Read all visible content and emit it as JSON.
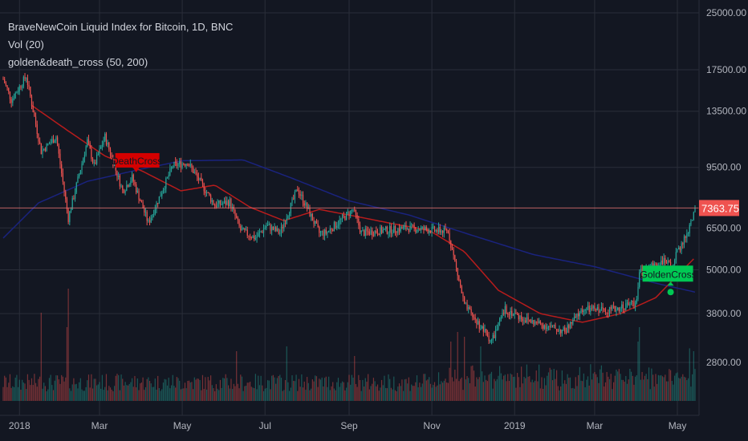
{
  "legend": {
    "title": "BraveNewCoin Liquid Index for Bitcoin, 1D, BNC",
    "volume": "Vol (20)",
    "indicator": "golden&death_cross (50, 200)"
  },
  "price_label": "7363.75",
  "annotations": {
    "death": "DeathCross",
    "golden": "GoldenCross"
  },
  "colors": {
    "background": "#131722",
    "grid": "#2a2e39",
    "up": "#26a69a",
    "down": "#ef5350",
    "ma50": "#b71c1c",
    "ma200": "#1a237e",
    "price_line": "#e57373",
    "death_marker": "#d50000",
    "golden_marker": "#00c853"
  },
  "chart_data": {
    "type": "candlestick",
    "scale": "log",
    "yticks": [
      25000,
      17500,
      13500,
      9500,
      6500,
      5000,
      3800,
      2800
    ],
    "ytick_labels": [
      "25000.00",
      "17500.00",
      "13500.00",
      "9500.00",
      "6500.00",
      "5000.00",
      "3800.00",
      "2800.00"
    ],
    "xticks": [
      "2018",
      "Mar",
      "May",
      "Jul",
      "Sep",
      "Nov",
      "2019",
      "Mar",
      "May"
    ],
    "xtick_dates": [
      "2018-01-01",
      "2018-03-01",
      "2018-05-01",
      "2018-07-01",
      "2018-09-01",
      "2018-11-01",
      "2019-01-01",
      "2019-03-01",
      "2019-05-01"
    ],
    "start_date": "2017-12-20",
    "end_date": "2019-05-14",
    "last_price": 7363.75,
    "close_anchors": [
      [
        "2017-12-20",
        16500
      ],
      [
        "2017-12-26",
        14500
      ],
      [
        "2018-01-06",
        16800
      ],
      [
        "2018-01-17",
        10500
      ],
      [
        "2018-01-28",
        11500
      ],
      [
        "2018-02-06",
        6900
      ],
      [
        "2018-02-20",
        11200
      ],
      [
        "2018-02-25",
        9600
      ],
      [
        "2018-03-05",
        11500
      ],
      [
        "2018-03-18",
        8200
      ],
      [
        "2018-03-25",
        8900
      ],
      [
        "2018-04-06",
        6700
      ],
      [
        "2018-04-24",
        9600
      ],
      [
        "2018-05-05",
        9800
      ],
      [
        "2018-05-25",
        7500
      ],
      [
        "2018-06-05",
        7650
      ],
      [
        "2018-06-13",
        6400
      ],
      [
        "2018-06-24",
        6100
      ],
      [
        "2018-07-02",
        6600
      ],
      [
        "2018-07-12",
        6300
      ],
      [
        "2018-07-25",
        8300
      ],
      [
        "2018-08-10",
        6300
      ],
      [
        "2018-08-15",
        6300
      ],
      [
        "2018-09-04",
        7300
      ],
      [
        "2018-09-10",
        6300
      ],
      [
        "2018-10-15",
        6500
      ],
      [
        "2018-11-13",
        6350
      ],
      [
        "2018-11-25",
        4000
      ],
      [
        "2018-12-15",
        3200
      ],
      [
        "2018-12-25",
        3900
      ],
      [
        "2019-01-10",
        3650
      ],
      [
        "2019-02-07",
        3400
      ],
      [
        "2019-02-20",
        3900
      ],
      [
        "2019-03-15",
        3900
      ],
      [
        "2019-04-01",
        4100
      ],
      [
        "2019-04-03",
        4900
      ],
      [
        "2019-04-20",
        5300
      ],
      [
        "2019-04-26",
        5100
      ],
      [
        "2019-05-10",
        6500
      ],
      [
        "2019-05-14",
        7363.75
      ]
    ],
    "ma50_anchors": [
      [
        "2018-01-10",
        14000
      ],
      [
        "2018-02-05",
        12000
      ],
      [
        "2018-03-05",
        10200
      ],
      [
        "2018-04-01",
        9300
      ],
      [
        "2018-04-30",
        8200
      ],
      [
        "2018-05-25",
        8500
      ],
      [
        "2018-06-20",
        7400
      ],
      [
        "2018-07-15",
        6800
      ],
      [
        "2018-08-10",
        7300
      ],
      [
        "2018-09-05",
        7000
      ],
      [
        "2018-10-01",
        6700
      ],
      [
        "2018-10-30",
        6400
      ],
      [
        "2018-11-25",
        5600
      ],
      [
        "2018-12-20",
        4400
      ],
      [
        "2019-01-20",
        3800
      ],
      [
        "2019-02-20",
        3600
      ],
      [
        "2019-03-20",
        3800
      ],
      [
        "2019-04-15",
        4200
      ],
      [
        "2019-05-14",
        5400
      ]
    ],
    "ma200_anchors": [
      [
        "2017-12-20",
        6100
      ],
      [
        "2018-01-15",
        7600
      ],
      [
        "2018-02-20",
        8700
      ],
      [
        "2018-04-01",
        9400
      ],
      [
        "2018-05-01",
        9900
      ],
      [
        "2018-06-15",
        9950
      ],
      [
        "2018-07-20",
        8900
      ],
      [
        "2018-09-01",
        7700
      ],
      [
        "2018-10-15",
        7050
      ],
      [
        "2018-12-01",
        6200
      ],
      [
        "2019-01-15",
        5500
      ],
      [
        "2019-03-01",
        5100
      ],
      [
        "2019-04-15",
        4600
      ],
      [
        "2019-05-14",
        4350
      ]
    ],
    "death_cross": {
      "date": "2018-03-28",
      "price": 8800,
      "label": "DeathCross"
    },
    "golden_cross": {
      "date": "2019-04-26",
      "price": 4350,
      "label": "GoldenCross"
    },
    "volume_spikes": [
      [
        "2018-02-06",
        1.0
      ],
      [
        "2018-01-17",
        0.75
      ],
      [
        "2018-02-05",
        0.6
      ],
      [
        "2018-11-20",
        0.55
      ],
      [
        "2018-11-15",
        0.45
      ],
      [
        "2018-11-25",
        0.5
      ],
      [
        "2019-04-03",
        0.6
      ],
      [
        "2019-04-02",
        0.45
      ],
      [
        "2018-12-07",
        0.4
      ],
      [
        "2019-05-13",
        0.35
      ],
      [
        "2018-06-10",
        0.35
      ],
      [
        "2018-07-17",
        0.4
      ],
      [
        "2019-05-10",
        0.38
      ],
      [
        "2018-09-05",
        0.3
      ]
    ]
  }
}
